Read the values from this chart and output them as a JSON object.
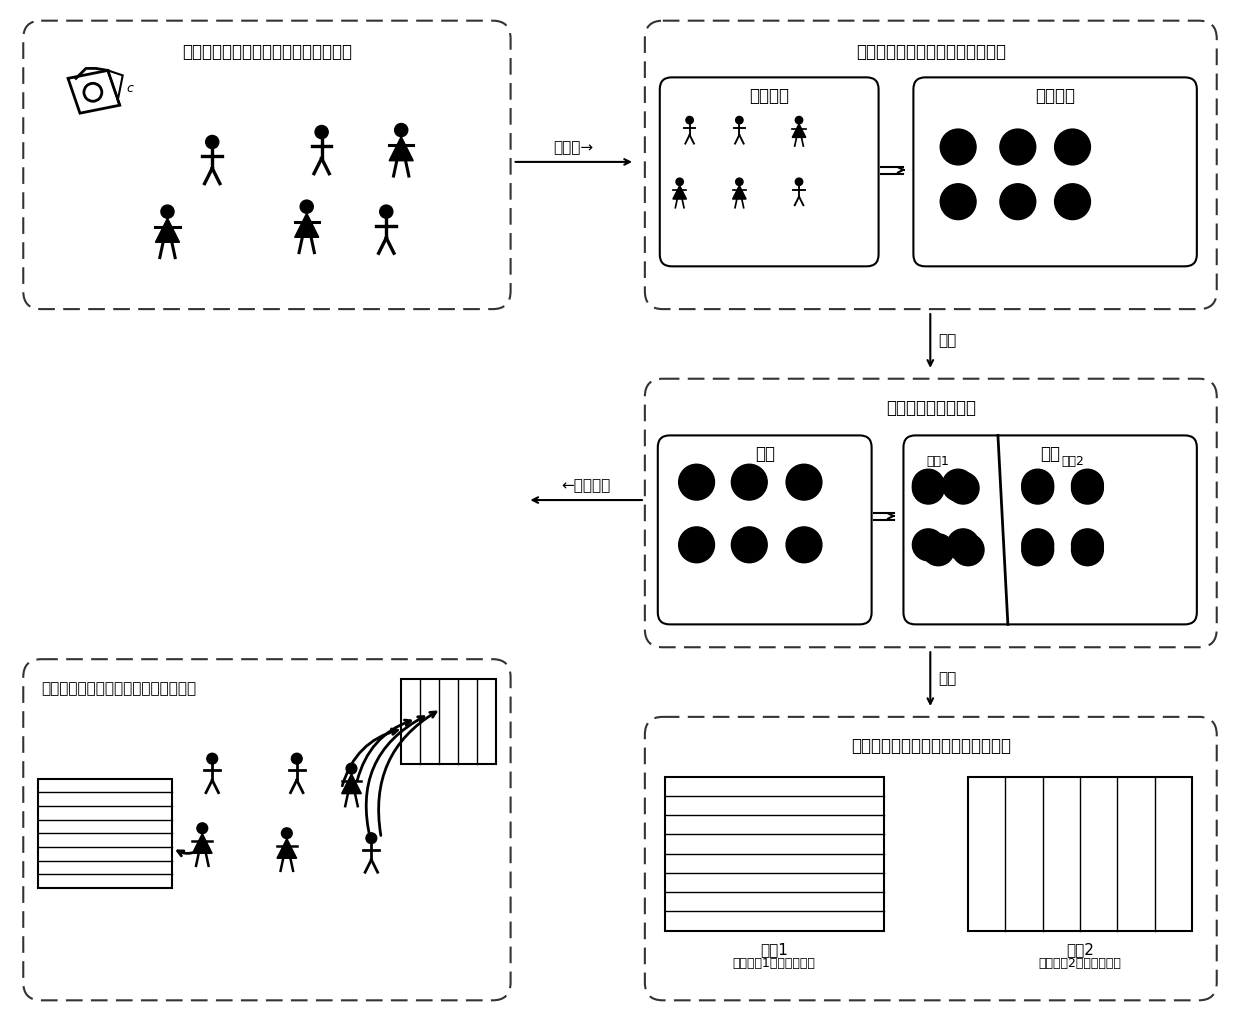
{
  "box1_title": "红外摄像头获取场景内人物位置并跟踪",
  "box2_title": "将现实场景信息映射到虚拟空间中",
  "box2_sub1": "真实空间",
  "box2_sub2": "虚拟空间",
  "box3_title": "虚拟场景内人物聚类",
  "box3_sub1": "输入",
  "box3_sub2": "输出",
  "box3_region1": "区域1",
  "box3_region2": "区域2",
  "box4_title": "观众通过佩戴快门眼镜看到不同的画面",
  "box5_title": "以聚类块中心为视点对场景进行渲染",
  "box5_label1": "画面1",
  "box5_label1_sub": "（以区域1中心为视点）",
  "box5_label2": "画面2",
  "box5_label2_sub": "（以区域2中心为视点）",
  "arrow_mapping": "一映射→",
  "arrow_clustering": "聚类",
  "arrow_rendering": "渲染",
  "arrow_viewing": "观看画面",
  "bg_color": "#ffffff"
}
